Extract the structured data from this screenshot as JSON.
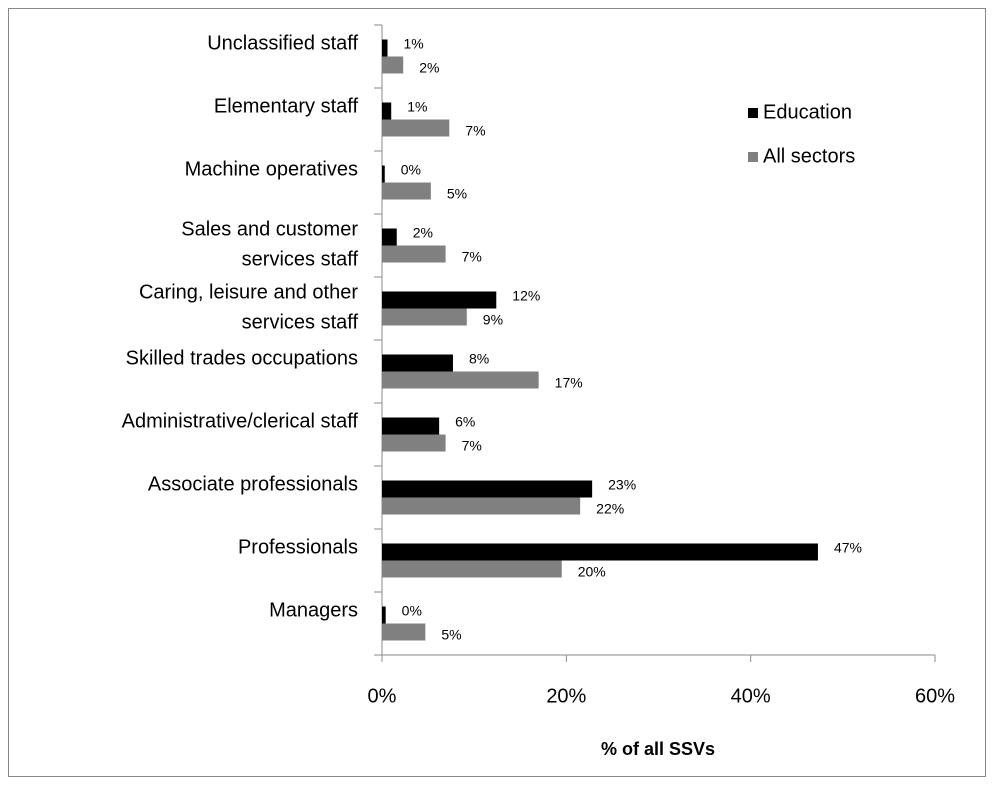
{
  "chart_data": {
    "type": "hbar",
    "x_label": "% of all SSVs",
    "categories": [
      "Managers",
      "Professionals",
      "Associate professionals",
      "Administrative/clerical staff",
      "Skilled trades occupations",
      "Caring, leisure and other\nservices staff",
      "Sales and customer\nservices staff",
      "Machine operatives",
      "Elementary staff",
      "Unclassified staff"
    ],
    "series": [
      {
        "name": "Education",
        "color": "#000000",
        "values": [
          0.4,
          47.3,
          22.8,
          6.2,
          7.7,
          12.4,
          1.6,
          0.3,
          1.0,
          0.6
        ],
        "value_labels": [
          "0%",
          "47%",
          "23%",
          "6%",
          "8%",
          "12%",
          "2%",
          "0%",
          "1%",
          "1%"
        ]
      },
      {
        "name": "All sectors",
        "color": "#808080",
        "values": [
          4.7,
          19.5,
          21.5,
          6.9,
          17.0,
          9.2,
          6.9,
          5.3,
          7.3,
          2.3
        ],
        "value_labels": [
          "5%",
          "20%",
          "22%",
          "7%",
          "17%",
          "9%",
          "7%",
          "5%",
          "7%",
          "2%"
        ]
      }
    ],
    "xlim": [
      0,
      60
    ],
    "xticks": [
      {
        "value": 0,
        "label": "0%"
      },
      {
        "value": 20,
        "label": "20%"
      },
      {
        "value": 40,
        "label": "40%"
      },
      {
        "value": 60,
        "label": "60%"
      }
    ],
    "legend": "upper right"
  }
}
